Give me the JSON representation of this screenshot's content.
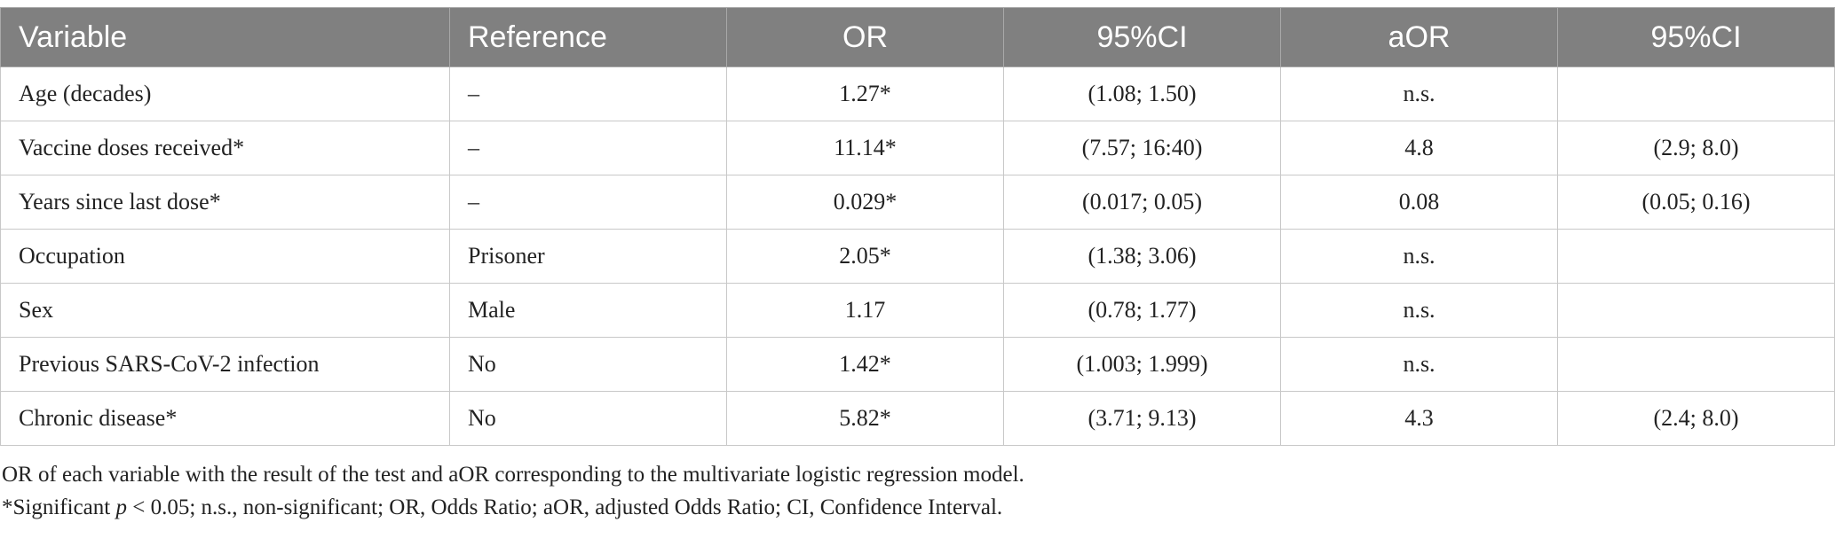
{
  "table": {
    "columns": [
      "Variable",
      "Reference",
      "OR",
      "95%CI",
      "aOR",
      "95%CI"
    ],
    "rows": [
      [
        "Age (decades)",
        "–",
        "1.27*",
        "(1.08; 1.50)",
        "n.s.",
        ""
      ],
      [
        "Vaccine doses received*",
        "–",
        "11.14*",
        "(7.57; 16:40)",
        "4.8",
        "(2.9; 8.0)"
      ],
      [
        "Years since last dose*",
        "–",
        "0.029*",
        "(0.017; 0.05)",
        "0.08",
        "(0.05; 0.16)"
      ],
      [
        "Occupation",
        "Prisoner",
        "2.05*",
        "(1.38; 3.06)",
        "n.s.",
        ""
      ],
      [
        "Sex",
        "Male",
        "1.17",
        "(0.78; 1.77)",
        "n.s.",
        ""
      ],
      [
        "Previous SARS-CoV-2 infection",
        "No",
        "1.42*",
        "(1.003; 1.999)",
        "n.s.",
        ""
      ],
      [
        "Chronic disease*",
        "No",
        "5.82*",
        "(3.71; 9.13)",
        "4.3",
        "(2.4; 8.0)"
      ]
    ]
  },
  "footnotes": {
    "line1": "OR of each variable with the result of the test and aOR corresponding to the multivariate logistic regression model.",
    "line2_prefix": "*Significant ",
    "line2_italic": "p",
    "line2_suffix": " < 0.05; n.s., non-significant; OR, Odds Ratio; aOR, adjusted Odds Ratio; CI, Confidence Interval."
  },
  "colors": {
    "header_bg": "#808080",
    "header_text": "#ffffff",
    "border": "#c8c8c8",
    "text": "#222222"
  }
}
